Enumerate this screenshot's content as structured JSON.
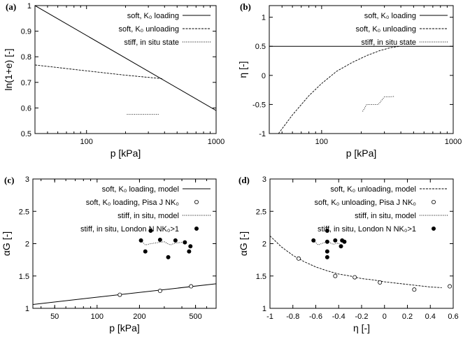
{
  "chart_data": [
    {
      "panel": "(a)",
      "type": "line",
      "xscale": "log",
      "xlim": [
        40,
        1000
      ],
      "ylim": [
        0.5,
        1.0
      ],
      "xticks": [
        100,
        1000
      ],
      "xtick_labels": [
        "100",
        "1000"
      ],
      "yticks": [
        0.5,
        0.6,
        0.7,
        0.8,
        0.9,
        1.0
      ],
      "ytick_labels": [
        "0.5",
        "0.6",
        "0.7",
        "0.8",
        "0.9",
        "1"
      ],
      "xlabel": "p [kPa]",
      "ylabel": "ln(1+e) [-]",
      "legend_position": "top-right",
      "series": [
        {
          "name": "soft, K₀ loading",
          "style": "solid",
          "x": [
            40,
            1000
          ],
          "y": [
            1.0,
            0.59
          ]
        },
        {
          "name": "soft, K₀ unloading",
          "style": "dashed",
          "x": [
            40,
            100,
            200,
            390
          ],
          "y": [
            0.768,
            0.745,
            0.728,
            0.714
          ]
        },
        {
          "name": "stiff, in situ state",
          "style": "dotted",
          "x": [
            205,
            220,
            240,
            255,
            270,
            300,
            330,
            360
          ],
          "y": [
            0.575,
            0.575,
            0.575,
            0.575,
            0.575,
            0.575,
            0.575,
            0.575
          ]
        }
      ]
    },
    {
      "panel": "(b)",
      "type": "line",
      "xscale": "log",
      "xlim": [
        40,
        1000
      ],
      "ylim": [
        -1.0,
        1.2
      ],
      "xticks": [
        100,
        1000
      ],
      "xtick_labels": [
        "100",
        "1000"
      ],
      "yticks": [
        -1.0,
        -0.5,
        0.0,
        0.5,
        1.0
      ],
      "ytick_labels": [
        "-1",
        "-0.5",
        "0",
        "0.5",
        "1"
      ],
      "xlabel": "p [kPa]",
      "ylabel": "η [-]",
      "legend_position": "top-right",
      "series": [
        {
          "name": "soft, K₀ loading",
          "style": "solid",
          "x": [
            40,
            1000
          ],
          "y": [
            0.5,
            0.5
          ]
        },
        {
          "name": "soft, K₀ unloading",
          "style": "dashed",
          "x": [
            47,
            60,
            80,
            100,
            130,
            170,
            220,
            280,
            340,
            390
          ],
          "y": [
            -1.0,
            -0.68,
            -0.35,
            -0.14,
            0.07,
            0.22,
            0.34,
            0.43,
            0.48,
            0.5
          ]
        },
        {
          "name": "stiff, in situ state",
          "style": "dotted",
          "x": [
            205,
            220,
            240,
            255,
            270,
            300,
            330,
            360
          ],
          "y": [
            -0.62,
            -0.5,
            -0.5,
            -0.5,
            -0.5,
            -0.37,
            -0.37,
            -0.36
          ]
        }
      ]
    },
    {
      "panel": "(c)",
      "type": "scatter",
      "xscale": "log",
      "xlim": [
        35,
        700
      ],
      "ylim": [
        1.0,
        3.0
      ],
      "xticks": [
        50,
        100,
        200,
        500
      ],
      "xtick_labels": [
        "50",
        "100",
        "200",
        "500"
      ],
      "yticks": [
        1.0,
        1.5,
        2.0,
        2.5,
        3.0
      ],
      "ytick_labels": [
        "1",
        "1.5",
        "2",
        "2.5",
        "3"
      ],
      "xlabel": "p [kPa]",
      "ylabel": "αG [-]",
      "legend_position": "top-right",
      "series": [
        {
          "name": "soft, K₀ loading, model",
          "style": "solid",
          "x": [
            35,
            700
          ],
          "y": [
            1.06,
            1.38
          ]
        },
        {
          "name": "soft, K₀ loading, Pisa J NK₀",
          "style": "open-circle",
          "x": [
            145,
            280,
            465
          ],
          "y": [
            1.21,
            1.27,
            1.34
          ]
        },
        {
          "name": "stiff, in situ, model",
          "style": "dotted",
          "x": [
            205,
            220,
            240,
            300,
            330,
            360,
            400
          ],
          "y": [
            2.05,
            1.98,
            2.0,
            2.03,
            1.98,
            2.01,
            2.02
          ]
        },
        {
          "name": "stiff, in situ, London N NK₀>1",
          "style": "filled-circle",
          "x": [
            205,
            220,
            240,
            280,
            320,
            360,
            420,
            450,
            460
          ],
          "y": [
            2.05,
            1.88,
            2.2,
            2.06,
            1.79,
            2.05,
            2.02,
            1.88,
            1.96
          ]
        }
      ]
    },
    {
      "panel": "(d)",
      "type": "scatter",
      "xscale": "linear",
      "xlim": [
        -1.0,
        0.6
      ],
      "ylim": [
        1.0,
        3.0
      ],
      "xticks": [
        -1.0,
        -0.8,
        -0.6,
        -0.4,
        -0.2,
        0.0,
        0.2,
        0.4,
        0.6
      ],
      "xtick_labels": [
        "-1",
        "-0.8",
        "-0.6",
        "-0.4",
        "-0.2",
        "0",
        "0.2",
        "0.4",
        "0.6"
      ],
      "yticks": [
        1.0,
        1.5,
        2.0,
        2.5,
        3.0
      ],
      "ytick_labels": [
        "1",
        "1.5",
        "2",
        "2.5",
        "3"
      ],
      "xlabel": "η [-]",
      "ylabel": "αG [-]",
      "legend_position": "top-right",
      "series": [
        {
          "name": "soft, K₀ unloading, model",
          "style": "dashed",
          "x": [
            -1.0,
            -0.9,
            -0.8,
            -0.7,
            -0.6,
            -0.5,
            -0.4,
            -0.3,
            -0.2,
            -0.1,
            0.0,
            0.1,
            0.2,
            0.3,
            0.4,
            0.5
          ],
          "y": [
            2.12,
            1.95,
            1.82,
            1.72,
            1.64,
            1.58,
            1.53,
            1.5,
            1.46,
            1.44,
            1.41,
            1.39,
            1.37,
            1.35,
            1.33,
            1.32
          ]
        },
        {
          "name": "soft, K₀ unloading, Pisa J NK₀",
          "style": "open-circle",
          "x": [
            -0.75,
            -0.43,
            -0.26,
            -0.04,
            0.26,
            0.57
          ],
          "y": [
            1.77,
            1.5,
            1.48,
            1.4,
            1.29,
            1.34
          ]
        },
        {
          "name": "stiff, in situ, model",
          "style": "dotted",
          "x": [
            -0.62,
            -0.58,
            -0.52,
            -0.5,
            -0.45,
            -0.4,
            -0.38
          ],
          "y": [
            2.05,
            1.98,
            2.02,
            2.04,
            1.99,
            2.01,
            1.97
          ]
        },
        {
          "name": "stiff, in situ, London N NK₀>1",
          "style": "filled-circle",
          "x": [
            -0.62,
            -0.5,
            -0.5,
            -0.5,
            -0.5,
            -0.43,
            -0.38,
            -0.37,
            -0.35
          ],
          "y": [
            2.05,
            2.2,
            2.03,
            1.88,
            1.79,
            2.05,
            1.96,
            2.05,
            2.03
          ]
        }
      ]
    }
  ]
}
